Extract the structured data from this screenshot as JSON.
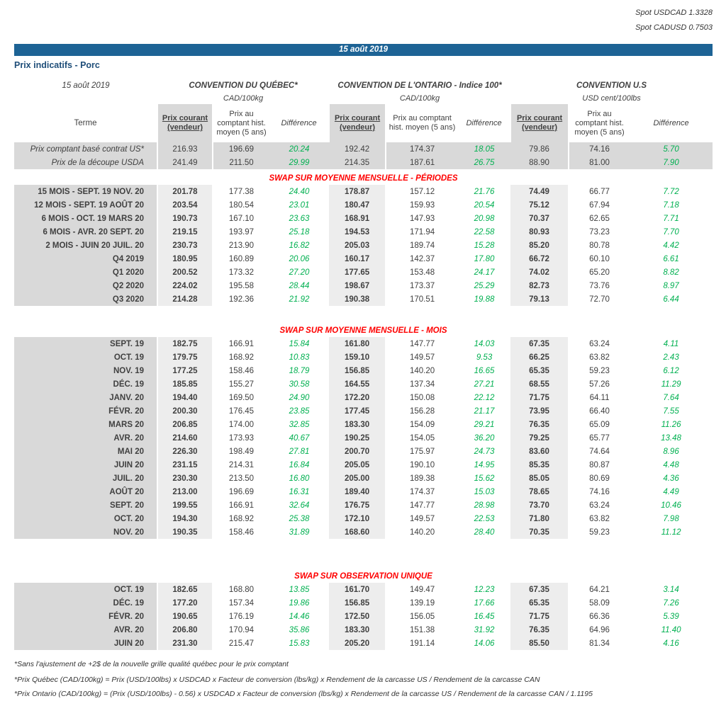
{
  "colors": {
    "accent_blue": "#1d6395",
    "title_blue": "#1f4e79",
    "positive_green": "#00b050",
    "section_red": "#ff0000"
  },
  "spot": {
    "usdcad": "Spot USDCAD 1.3328",
    "cadusd": "Spot CADUSD 0.7503"
  },
  "banner": {
    "date": "15 août 2019"
  },
  "title": "Prix indicatifs - Porc",
  "table": {
    "date_header": "15 août 2019",
    "terme_header": "Terme",
    "groups": [
      {
        "title": "CONVENTION DU QUÉBEC*",
        "unit": "CAD/100kg"
      },
      {
        "title": "CONVENTION DE L'ONTARIO - Indice 100*",
        "unit": "CAD/100kg"
      },
      {
        "title": "CONVENTION U.S",
        "unit": "USD cent/100lbs"
      }
    ],
    "subheaders": {
      "prix_courant": "Prix courant (vendeur)",
      "prix_hist": "Prix au comptant hist. moyen (5 ans)",
      "difference": "Différence"
    },
    "sections": [
      {
        "title": null,
        "gap_before": 0,
        "style": "summary",
        "rows": [
          {
            "label": "Prix comptant basé contrat US*",
            "values": [
              "216.93",
              "196.69",
              "20.24",
              "192.42",
              "174.37",
              "18.05",
              "79.86",
              "74.16",
              "5.70"
            ]
          },
          {
            "label": "Prix de la découpe USDA",
            "values": [
              "241.49",
              "211.50",
              "29.99",
              "214.35",
              "187.61",
              "26.75",
              "88.90",
              "81.00",
              "7.90"
            ]
          }
        ]
      },
      {
        "title": "SWAP SUR MOYENNE MENSUELLE - PÉRIODES",
        "gap_before": 4,
        "style": "normal",
        "rows": [
          {
            "label": "15 MOIS -  SEPT. 19 NOV. 20",
            "values": [
              "201.78",
              "177.38",
              "24.40",
              "178.87",
              "157.12",
              "21.76",
              "74.49",
              "66.77",
              "7.72"
            ]
          },
          {
            "label": "12 MOIS -  SEPT. 19 AOÛT 20",
            "values": [
              "203.54",
              "180.54",
              "23.01",
              "180.47",
              "159.93",
              "20.54",
              "75.12",
              "67.94",
              "7.18"
            ]
          },
          {
            "label": "6 MOIS -  OCT. 19 MARS 20",
            "values": [
              "190.73",
              "167.10",
              "23.63",
              "168.91",
              "147.93",
              "20.98",
              "70.37",
              "62.65",
              "7.71"
            ]
          },
          {
            "label": "6 MOIS -  AVR. 20 SEPT. 20",
            "values": [
              "219.15",
              "193.97",
              "25.18",
              "194.53",
              "171.94",
              "22.58",
              "80.93",
              "73.23",
              "7.70"
            ]
          },
          {
            "label": "2 MOIS -  JUIN 20  JUIL. 20",
            "values": [
              "230.73",
              "213.90",
              "16.82",
              "205.03",
              "189.74",
              "15.28",
              "85.20",
              "80.78",
              "4.42"
            ]
          },
          {
            "label": "Q4 2019",
            "values": [
              "180.95",
              "160.89",
              "20.06",
              "160.17",
              "142.37",
              "17.80",
              "66.72",
              "60.10",
              "6.61"
            ]
          },
          {
            "label": "Q1 2020",
            "values": [
              "200.52",
              "173.32",
              "27.20",
              "177.65",
              "153.48",
              "24.17",
              "74.02",
              "65.20",
              "8.82"
            ]
          },
          {
            "label": "Q2 2020",
            "values": [
              "224.02",
              "195.58",
              "28.44",
              "198.67",
              "173.37",
              "25.29",
              "82.73",
              "73.76",
              "8.97"
            ]
          },
          {
            "label": "Q3 2020",
            "values": [
              "214.28",
              "192.36",
              "21.92",
              "190.38",
              "170.51",
              "19.88",
              "79.13",
              "72.70",
              "6.44"
            ]
          }
        ]
      },
      {
        "title": "SWAP SUR MOYENNE MENSUELLE - MOIS",
        "gap_before": 26,
        "style": "normal",
        "rows": [
          {
            "label": "SEPT. 19",
            "values": [
              "182.75",
              "166.91",
              "15.84",
              "161.80",
              "147.77",
              "14.03",
              "67.35",
              "63.24",
              "4.11"
            ]
          },
          {
            "label": "OCT. 19",
            "values": [
              "179.75",
              "168.92",
              "10.83",
              "159.10",
              "149.57",
              "9.53",
              "66.25",
              "63.82",
              "2.43"
            ]
          },
          {
            "label": "NOV. 19",
            "values": [
              "177.25",
              "158.46",
              "18.79",
              "156.85",
              "140.20",
              "16.65",
              "65.35",
              "59.23",
              "6.12"
            ]
          },
          {
            "label": "DÉC. 19",
            "values": [
              "185.85",
              "155.27",
              "30.58",
              "164.55",
              "137.34",
              "27.21",
              "68.55",
              "57.26",
              "11.29"
            ]
          },
          {
            "label": "JANV. 20",
            "values": [
              "194.40",
              "169.50",
              "24.90",
              "172.20",
              "150.08",
              "22.12",
              "71.75",
              "64.11",
              "7.64"
            ]
          },
          {
            "label": "FÉVR. 20",
            "values": [
              "200.30",
              "176.45",
              "23.85",
              "177.45",
              "156.28",
              "21.17",
              "73.95",
              "66.40",
              "7.55"
            ]
          },
          {
            "label": "MARS 20",
            "values": [
              "206.85",
              "174.00",
              "32.85",
              "183.30",
              "154.09",
              "29.21",
              "76.35",
              "65.09",
              "11.26"
            ]
          },
          {
            "label": "AVR. 20",
            "values": [
              "214.60",
              "173.93",
              "40.67",
              "190.25",
              "154.05",
              "36.20",
              "79.25",
              "65.77",
              "13.48"
            ]
          },
          {
            "label": "MAI 20",
            "values": [
              "226.30",
              "198.49",
              "27.81",
              "200.70",
              "175.97",
              "24.73",
              "83.60",
              "74.64",
              "8.96"
            ]
          },
          {
            "label": "JUIN 20",
            "values": [
              "231.15",
              "214.31",
              "16.84",
              "205.05",
              "190.10",
              "14.95",
              "85.35",
              "80.87",
              "4.48"
            ]
          },
          {
            "label": "JUIL. 20",
            "values": [
              "230.30",
              "213.50",
              "16.80",
              "205.00",
              "189.38",
              "15.62",
              "85.05",
              "80.69",
              "4.36"
            ]
          },
          {
            "label": "AOÛT 20",
            "values": [
              "213.00",
              "196.69",
              "16.31",
              "189.40",
              "174.37",
              "15.03",
              "78.65",
              "74.16",
              "4.49"
            ]
          },
          {
            "label": "SEPT. 20",
            "values": [
              "199.55",
              "166.91",
              "32.64",
              "176.75",
              "147.77",
              "28.98",
              "73.70",
              "63.24",
              "10.46"
            ]
          },
          {
            "label": "OCT. 20",
            "values": [
              "194.30",
              "168.92",
              "25.38",
              "172.10",
              "149.57",
              "22.53",
              "71.80",
              "63.82",
              "7.98"
            ]
          },
          {
            "label": "NOV. 20",
            "values": [
              "190.35",
              "158.46",
              "31.89",
              "168.60",
              "140.20",
              "28.40",
              "70.35",
              "59.23",
              "11.12"
            ]
          }
        ]
      },
      {
        "title": "SWAP SUR OBSERVATION UNIQUE",
        "gap_before": 44,
        "style": "normal",
        "rows": [
          {
            "label": "OCT. 19",
            "values": [
              "182.65",
              "168.80",
              "13.85",
              "161.70",
              "149.47",
              "12.23",
              "67.35",
              "64.21",
              "3.14"
            ]
          },
          {
            "label": "DÉC. 19",
            "values": [
              "177.20",
              "157.34",
              "19.86",
              "156.85",
              "139.19",
              "17.66",
              "65.35",
              "58.09",
              "7.26"
            ]
          },
          {
            "label": "FÉVR. 20",
            "values": [
              "190.65",
              "176.19",
              "14.46",
              "172.50",
              "156.05",
              "16.45",
              "71.75",
              "66.36",
              "5.39"
            ]
          },
          {
            "label": "AVR. 20",
            "values": [
              "206.80",
              "170.94",
              "35.86",
              "183.30",
              "151.38",
              "31.92",
              "76.35",
              "64.96",
              "11.40"
            ]
          },
          {
            "label": "JUIN 20",
            "values": [
              "231.30",
              "215.47",
              "15.83",
              "205.20",
              "191.14",
              "14.06",
              "85.50",
              "81.34",
              "4.16"
            ]
          }
        ]
      }
    ]
  },
  "footnotes": [
    "*Sans l'ajustement de +2$ de la nouvelle grille qualité québec pour le prix comptant",
    "*Prix Québec (CAD/100kg) = Prix (USD/100lbs) x USDCAD x Facteur de conversion (lbs/kg) x Rendement de la carcasse US / Rendement de la carcasse CAN",
    "*Prix Ontario (CAD/100kg) = (Prix (USD/100lbs) - 0.56) x USDCAD x Facteur de conversion (lbs/kg) x Rendement de la carcasse US / Rendement de la carcasse CAN / 1.1195"
  ]
}
